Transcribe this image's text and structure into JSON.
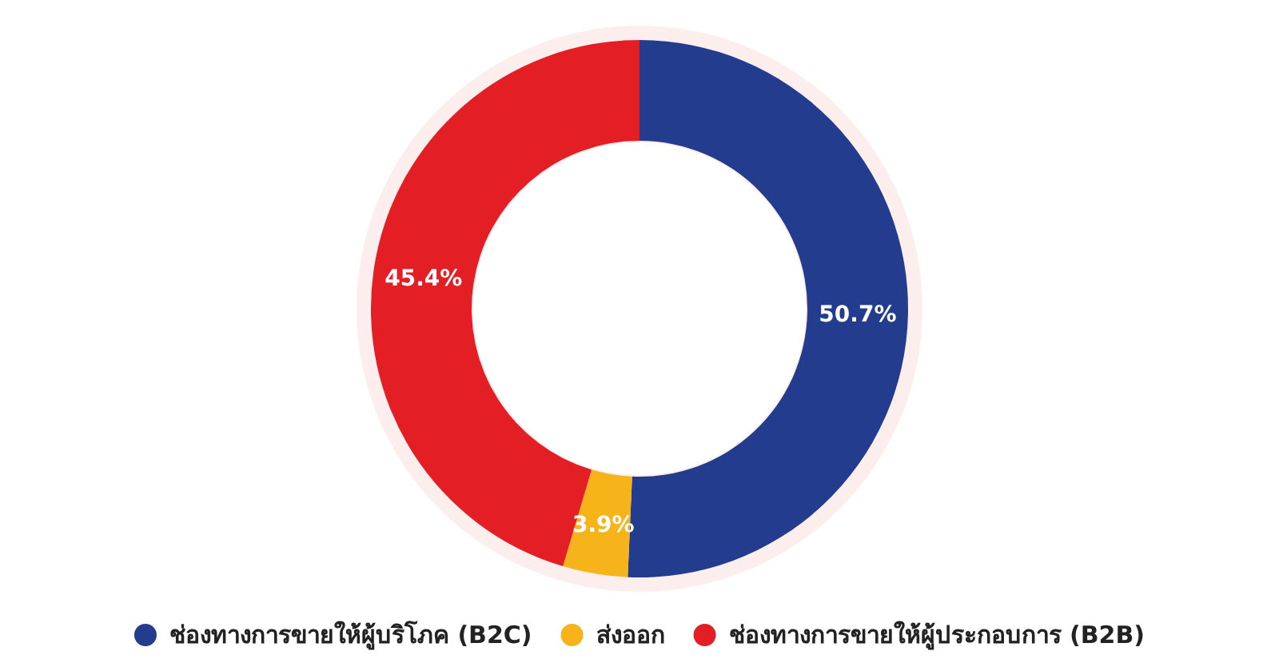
{
  "chart_data": {
    "type": "donut",
    "categories": [
      "ช่องทางการขายให้ผู้บริโภค (B2C)",
      "ส่งออก",
      "ช่องทางการขายให้ผู้ประกอบการ (B2B)"
    ],
    "values": [
      50.7,
      3.9,
      45.4
    ],
    "colors": [
      "#233c8e",
      "#f6b41a",
      "#e31e25"
    ],
    "value_labels": [
      "50.7%",
      "3.9%",
      "45.4%"
    ],
    "legend": "bottom"
  }
}
